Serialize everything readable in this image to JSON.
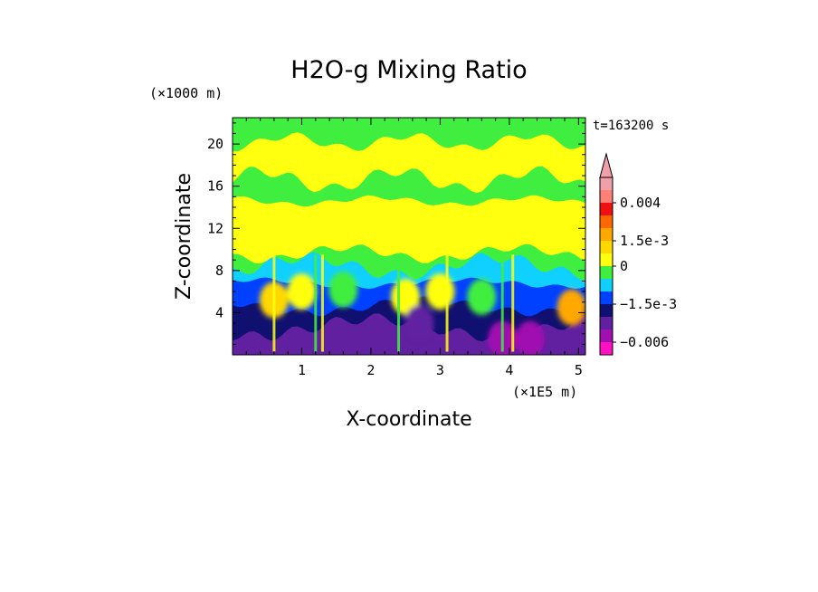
{
  "chart_data": {
    "type": "heatmap",
    "title": "H2O-g Mixing Ratio",
    "xlabel": "X-coordinate",
    "ylabel": "Z-coordinate",
    "x_unit": "(×1E5 m)",
    "y_unit": "(×1000 m)",
    "time_label": "t=163200 s",
    "xlim": [
      0,
      5.1
    ],
    "ylim": [
      0,
      22.5
    ],
    "x_ticks": [
      1,
      2,
      3,
      4,
      5
    ],
    "y_ticks": [
      4,
      8,
      12,
      16,
      20
    ],
    "colorbar": {
      "levels": [
        {
          "color": "#f0a0a8"
        },
        {
          "color": "#ff8078"
        },
        {
          "color": "#f01010"
        },
        {
          "color": "#ff6800"
        },
        {
          "color": "#ffa800"
        },
        {
          "color": "#ffd800"
        },
        {
          "color": "#ffff10"
        },
        {
          "color": "#40ee40"
        },
        {
          "color": "#10d0ff"
        },
        {
          "color": "#0040ff"
        },
        {
          "color": "#101070"
        },
        {
          "color": "#6020a0"
        },
        {
          "color": "#a010b0"
        },
        {
          "color": "#ff10c0"
        }
      ],
      "labels": [
        {
          "text": "0.004",
          "after_level": 1
        },
        {
          "text": "1.5e-3",
          "after_level": 4
        },
        {
          "text": "0",
          "after_level": 6
        },
        {
          "text": "−1.5e-3",
          "after_level": 9
        },
        {
          "text": "−0.006",
          "after_level": 12
        }
      ]
    },
    "bands": [
      {
        "z_top": 22.5,
        "z_bottom": 20.2,
        "color": "#40ee40"
      },
      {
        "z_top": 20.2,
        "z_bottom": 16.6,
        "color": "#ffff10"
      },
      {
        "z_top": 16.6,
        "z_bottom": 14.6,
        "color": "#40ee40"
      },
      {
        "z_top": 14.6,
        "z_bottom": 9.6,
        "color": "#ffff10"
      },
      {
        "z_top": 9.6,
        "z_bottom": 8.4,
        "color": "#40ee40"
      },
      {
        "z_top": 8.4,
        "z_bottom": 6.8,
        "color": "#10d0ff"
      },
      {
        "z_top": 6.8,
        "z_bottom": 4.6,
        "color": "#0040ff"
      },
      {
        "z_top": 4.6,
        "z_bottom": 2.6,
        "color": "#101070"
      },
      {
        "z_top": 2.6,
        "z_bottom": 0,
        "color": "#6020a0"
      }
    ],
    "features": [
      {
        "x": 0.6,
        "z": 5.2,
        "color": "#ffd800"
      },
      {
        "x": 1.0,
        "z": 6.0,
        "color": "#ffff10"
      },
      {
        "x": 1.6,
        "z": 6.2,
        "color": "#40ee40"
      },
      {
        "x": 2.5,
        "z": 5.5,
        "color": "#ffff10"
      },
      {
        "x": 3.0,
        "z": 6.0,
        "color": "#ffff10"
      },
      {
        "x": 3.6,
        "z": 5.5,
        "color": "#40ee40"
      },
      {
        "x": 4.9,
        "z": 4.5,
        "color": "#ffa800"
      },
      {
        "x": 4.3,
        "z": 1.5,
        "color": "#a010b0"
      },
      {
        "x": 3.9,
        "z": 1.5,
        "color": "#a010b0"
      },
      {
        "x": 2.7,
        "z": 3.0,
        "color": "#6020a0"
      }
    ]
  }
}
